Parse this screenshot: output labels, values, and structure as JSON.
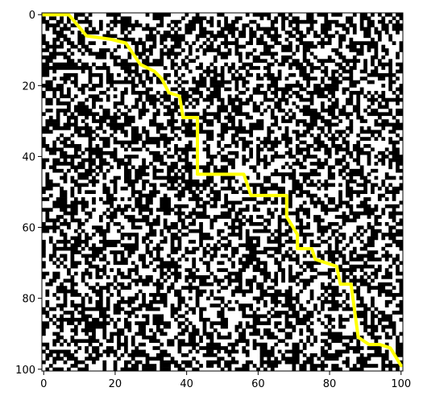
{
  "chart_data": {
    "type": "heatmap",
    "title": "",
    "xlabel": "",
    "ylabel": "",
    "xlim": [
      0,
      100
    ],
    "ylim": [
      100,
      0
    ],
    "grid": false,
    "grid_rows": 101,
    "grid_cols": 101,
    "obstacle_density": 0.5,
    "colors": {
      "obstacle": "#000000",
      "free": "#ffffff",
      "path": "#ffff00"
    },
    "x_ticks": [
      0,
      20,
      40,
      60,
      80,
      100
    ],
    "y_ticks": [
      0,
      20,
      40,
      60,
      80,
      100
    ],
    "x_tick_labels": [
      "0",
      "20",
      "40",
      "60",
      "80",
      "100"
    ],
    "y_tick_labels": [
      "0",
      "20",
      "40",
      "60",
      "80",
      "100"
    ],
    "path": [
      [
        0,
        0
      ],
      [
        7,
        0
      ],
      [
        12,
        6
      ],
      [
        19,
        7
      ],
      [
        23,
        8
      ],
      [
        27,
        14
      ],
      [
        31,
        16
      ],
      [
        33,
        18
      ],
      [
        35,
        22
      ],
      [
        38,
        23
      ],
      [
        39,
        29
      ],
      [
        43,
        29
      ],
      [
        43,
        45
      ],
      [
        56,
        45
      ],
      [
        58,
        51
      ],
      [
        68,
        51
      ],
      [
        68,
        57
      ],
      [
        71,
        62
      ],
      [
        71,
        66
      ],
      [
        75,
        66
      ],
      [
        76,
        69
      ],
      [
        82,
        71
      ],
      [
        83,
        76
      ],
      [
        86,
        76
      ],
      [
        88,
        91
      ],
      [
        91,
        93
      ],
      [
        94,
        93
      ],
      [
        97,
        94
      ],
      [
        100,
        99
      ]
    ]
  }
}
